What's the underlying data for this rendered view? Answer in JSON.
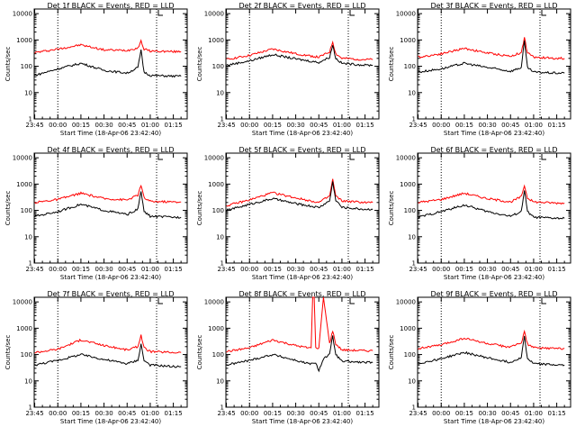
{
  "chart_data": [
    {
      "type": "line",
      "title": "Det 1f BLACK = Events, RED = LLD",
      "xlabel": "Start Time (18-Apr-06 23:42:40)",
      "ylabel": "Counts/sec",
      "x_ticks": [
        "23:45",
        "00:00",
        "00:15",
        "00:30",
        "00:45",
        "01:00",
        "01:15"
      ],
      "y_ticks": [
        "1",
        "10",
        "100",
        "1000",
        "10000"
      ],
      "yscale": "log",
      "ylim": [
        1,
        15000
      ],
      "x": [
        "23:45",
        "00:00",
        "00:15",
        "00:30",
        "00:45",
        "00:52",
        "00:54",
        "00:56",
        "01:00",
        "01:15",
        "01:20"
      ],
      "series": [
        {
          "name": "LLD",
          "color": "#ff0000",
          "values": [
            330,
            450,
            650,
            420,
            400,
            500,
            900,
            450,
            380,
            360,
            360
          ]
        },
        {
          "name": "Events",
          "color": "#000000",
          "values": [
            45,
            80,
            130,
            70,
            55,
            90,
            400,
            60,
            45,
            42,
            42
          ]
        }
      ]
    },
    {
      "type": "line",
      "title": "Det 2f BLACK = Events, RED = LLD",
      "xlabel": "Start Time (18-Apr-06 23:42:40)",
      "ylabel": "Counts/sec",
      "x_ticks": [
        "23:45",
        "00:00",
        "00:15",
        "00:30",
        "00:45",
        "01:00",
        "01:15"
      ],
      "y_ticks": [
        "1",
        "10",
        "100",
        "1000",
        "10000"
      ],
      "yscale": "log",
      "ylim": [
        1,
        15000
      ],
      "x": [
        "23:45",
        "00:00",
        "00:15",
        "00:30",
        "00:45",
        "00:52",
        "00:54",
        "00:56",
        "01:00",
        "01:15",
        "01:20"
      ],
      "series": [
        {
          "name": "LLD",
          "color": "#ff0000",
          "values": [
            180,
            260,
            450,
            300,
            220,
            350,
            850,
            300,
            200,
            180,
            180
          ]
        },
        {
          "name": "Events",
          "color": "#000000",
          "values": [
            110,
            160,
            280,
            190,
            140,
            220,
            650,
            200,
            130,
            110,
            110
          ]
        }
      ]
    },
    {
      "type": "line",
      "title": "Det 3f BLACK = Events, RED = LLD",
      "xlabel": "Start Time (18-Apr-06 23:42:40)",
      "ylabel": "Counts/sec",
      "x_ticks": [
        "23:45",
        "00:00",
        "00:15",
        "00:30",
        "00:45",
        "01:00",
        "01:15"
      ],
      "y_ticks": [
        "1",
        "10",
        "100",
        "1000",
        "10000"
      ],
      "yscale": "log",
      "ylim": [
        1,
        15000
      ],
      "x": [
        "23:45",
        "00:00",
        "00:15",
        "00:30",
        "00:45",
        "00:52",
        "00:54",
        "00:56",
        "01:00",
        "01:15",
        "01:20"
      ],
      "series": [
        {
          "name": "LLD",
          "color": "#ff0000",
          "values": [
            220,
            300,
            480,
            320,
            240,
            330,
            1200,
            330,
            220,
            200,
            200
          ]
        },
        {
          "name": "Events",
          "color": "#000000",
          "values": [
            60,
            80,
            130,
            90,
            65,
            90,
            900,
            90,
            60,
            55,
            55
          ]
        }
      ]
    },
    {
      "type": "line",
      "title": "Det 4f BLACK = Events, RED = LLD",
      "xlabel": "Start Time (18-Apr-06 23:42:40)",
      "ylabel": "Counts/sec",
      "x_ticks": [
        "23:45",
        "00:00",
        "00:15",
        "00:30",
        "00:45",
        "01:00",
        "01:15"
      ],
      "y_ticks": [
        "1",
        "10",
        "100",
        "1000",
        "10000"
      ],
      "yscale": "log",
      "ylim": [
        1,
        15000
      ],
      "x": [
        "23:45",
        "00:00",
        "00:15",
        "00:30",
        "00:45",
        "00:52",
        "00:54",
        "00:56",
        "01:00",
        "01:15",
        "01:20"
      ],
      "series": [
        {
          "name": "LLD",
          "color": "#ff0000",
          "values": [
            200,
            260,
            450,
            280,
            250,
            380,
            900,
            300,
            220,
            210,
            210
          ]
        },
        {
          "name": "Events",
          "color": "#000000",
          "values": [
            60,
            90,
            170,
            100,
            70,
            110,
            550,
            90,
            60,
            55,
            55
          ]
        }
      ]
    },
    {
      "type": "line",
      "title": "Det 5f BLACK = Events, RED = LLD",
      "xlabel": "Start Time (18-Apr-06 23:42:40)",
      "ylabel": "Counts/sec",
      "x_ticks": [
        "23:45",
        "00:00",
        "00:15",
        "00:30",
        "00:45",
        "01:00",
        "01:15"
      ],
      "y_ticks": [
        "1",
        "10",
        "100",
        "1000",
        "10000"
      ],
      "yscale": "log",
      "ylim": [
        1,
        15000
      ],
      "x": [
        "23:45",
        "00:00",
        "00:15",
        "00:30",
        "00:45",
        "00:52",
        "00:54",
        "00:56",
        "01:00",
        "01:15",
        "01:20"
      ],
      "series": [
        {
          "name": "LLD",
          "color": "#ff0000",
          "values": [
            150,
            250,
            470,
            300,
            200,
            350,
            1500,
            350,
            230,
            200,
            200
          ]
        },
        {
          "name": "Events",
          "color": "#000000",
          "values": [
            100,
            170,
            280,
            180,
            130,
            230,
            1200,
            250,
            130,
            110,
            110
          ]
        }
      ]
    },
    {
      "type": "line",
      "title": "Det 6f BLACK = Events, RED = LLD",
      "xlabel": "Start Time (18-Apr-06 23:42:40)",
      "ylabel": "Counts/sec",
      "x_ticks": [
        "23:45",
        "00:00",
        "00:15",
        "00:30",
        "00:45",
        "01:00",
        "01:15"
      ],
      "y_ticks": [
        "1",
        "10",
        "100",
        "1000",
        "10000"
      ],
      "yscale": "log",
      "ylim": [
        1,
        15000
      ],
      "x": [
        "23:45",
        "00:00",
        "00:15",
        "00:30",
        "00:45",
        "00:52",
        "00:54",
        "00:56",
        "01:00",
        "01:15",
        "01:20"
      ],
      "series": [
        {
          "name": "LLD",
          "color": "#ff0000",
          "values": [
            200,
            260,
            450,
            280,
            210,
            330,
            900,
            300,
            210,
            190,
            190
          ]
        },
        {
          "name": "Events",
          "color": "#000000",
          "values": [
            55,
            90,
            160,
            90,
            60,
            90,
            600,
            90,
            55,
            50,
            50
          ]
        }
      ]
    },
    {
      "type": "line",
      "title": "Det 7f BLACK = Events, RED = LLD",
      "xlabel": "Start Time (18-Apr-06 23:42:40)",
      "ylabel": "Counts/sec",
      "x_ticks": [
        "23:45",
        "00:00",
        "00:15",
        "00:30",
        "00:45",
        "01:00",
        "01:15"
      ],
      "y_ticks": [
        "1",
        "10",
        "100",
        "1000",
        "10000"
      ],
      "yscale": "log",
      "ylim": [
        1,
        15000
      ],
      "x": [
        "23:45",
        "00:00",
        "00:15",
        "00:30",
        "00:45",
        "00:52",
        "00:54",
        "00:56",
        "01:00",
        "01:15",
        "01:20"
      ],
      "series": [
        {
          "name": "LLD",
          "color": "#ff0000",
          "values": [
            120,
            160,
            360,
            220,
            150,
            200,
            550,
            180,
            130,
            120,
            120
          ]
        },
        {
          "name": "Events",
          "color": "#000000",
          "values": [
            40,
            60,
            100,
            65,
            45,
            60,
            250,
            60,
            40,
            35,
            35
          ]
        }
      ]
    },
    {
      "type": "line",
      "title": "Det 8f BLACK = Events, RED = LLD",
      "xlabel": "Start Time (18-Apr-06 23:42:40)",
      "ylabel": "Counts/sec",
      "x_ticks": [
        "23:45",
        "00:00",
        "00:15",
        "00:30",
        "00:45",
        "01:00",
        "01:15"
      ],
      "y_ticks": [
        "1",
        "10",
        "100",
        "1000",
        "10000"
      ],
      "yscale": "log",
      "ylim": [
        1,
        15000
      ],
      "x": [
        "23:45",
        "00:00",
        "00:15",
        "00:30",
        "00:38",
        "00:40",
        "00:41",
        "00:42",
        "00:43",
        "00:45",
        "00:48",
        "00:52",
        "00:54",
        "00:56",
        "01:00",
        "01:15",
        "01:20"
      ],
      "series": [
        {
          "name": "LLD",
          "color": "#ff0000",
          "values": [
            130,
            180,
            360,
            220,
            180,
            180,
            15000,
            15000,
            180,
            180,
            15000,
            260,
            800,
            250,
            150,
            140,
            140
          ]
        },
        {
          "name": "Events",
          "color": "#000000",
          "values": [
            40,
            60,
            100,
            60,
            45,
            45,
            45,
            45,
            45,
            25,
            70,
            100,
            500,
            100,
            55,
            50,
            50
          ]
        }
      ]
    },
    {
      "type": "line",
      "title": "Det 9f BLACK = Events, RED = LLD",
      "xlabel": "Start Time (18-Apr-06 23:42:40)",
      "ylabel": "Counts/sec",
      "x_ticks": [
        "23:45",
        "00:00",
        "00:15",
        "00:30",
        "00:45",
        "01:00",
        "01:15"
      ],
      "y_ticks": [
        "1",
        "10",
        "100",
        "1000",
        "10000"
      ],
      "yscale": "log",
      "ylim": [
        1,
        15000
      ],
      "x": [
        "23:45",
        "00:00",
        "00:15",
        "00:30",
        "00:45",
        "00:52",
        "00:54",
        "00:56",
        "01:00",
        "01:15",
        "01:20"
      ],
      "series": [
        {
          "name": "LLD",
          "color": "#ff0000",
          "values": [
            170,
            230,
            420,
            260,
            190,
            280,
            750,
            250,
            180,
            170,
            170
          ]
        },
        {
          "name": "Events",
          "color": "#000000",
          "values": [
            45,
            70,
            120,
            75,
            50,
            80,
            500,
            70,
            45,
            40,
            40
          ]
        }
      ]
    }
  ]
}
